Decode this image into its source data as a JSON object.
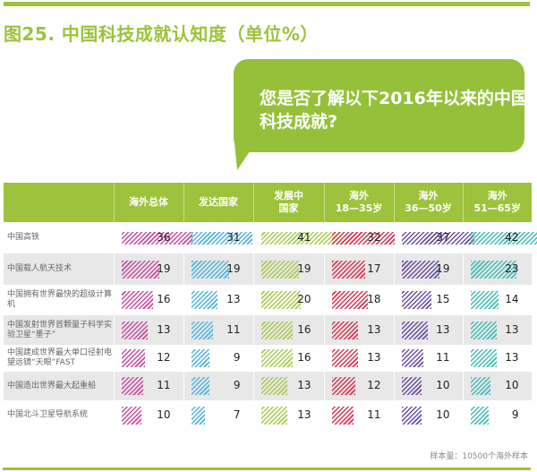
{
  "title": "图25. 中国科技成就认知度（单位%）",
  "question": "您是否了解以下2016年以来的中国科技成就?",
  "note": "样本量：10500个海外样本",
  "colors": {
    "brand": "#9dc23b",
    "series": [
      "#c94aa0",
      "#4fb3dd",
      "#a8c94c",
      "#d9334f",
      "#6a4fa5",
      "#3fbcb5"
    ]
  },
  "chart_data": {
    "type": "table",
    "title": "图25. 中国科技成就认知度（单位%）",
    "unit": "%",
    "columns": [
      "海外总体",
      "发达国家",
      "发展中国家",
      "海外18—35岁",
      "海外36—50岁",
      "海外51—65岁"
    ],
    "column_headers": [
      {
        "line1": "海外总体",
        "line2": ""
      },
      {
        "line1": "发达国家",
        "line2": ""
      },
      {
        "line1": "发展中",
        "line2": "国家"
      },
      {
        "line1": "海外",
        "line2": "18—35岁"
      },
      {
        "line1": "海外",
        "line2": "36—50岁"
      },
      {
        "line1": "海外",
        "line2": "51—65岁"
      }
    ],
    "rows": [
      {
        "label": "中国高铁",
        "values": [
          36,
          31,
          41,
          32,
          37,
          42
        ]
      },
      {
        "label": "中国载人航天技术",
        "values": [
          19,
          19,
          19,
          17,
          19,
          23
        ]
      },
      {
        "label": "中国拥有世界最快的超级计算机",
        "values": [
          16,
          13,
          20,
          18,
          15,
          14
        ]
      },
      {
        "label": "中国发射世界首颗量子科学实验卫星“墨子”",
        "values": [
          13,
          11,
          16,
          13,
          13,
          13
        ]
      },
      {
        "label": "中国建成世界最大单口径射电望远镜“天眼”FAST",
        "values": [
          12,
          9,
          16,
          13,
          11,
          13
        ]
      },
      {
        "label": "中国造出世界最大起重船",
        "values": [
          11,
          9,
          13,
          12,
          10,
          10
        ]
      },
      {
        "label": "中国北斗卫星导航系统",
        "values": [
          10,
          7,
          13,
          11,
          10,
          9
        ]
      }
    ]
  }
}
